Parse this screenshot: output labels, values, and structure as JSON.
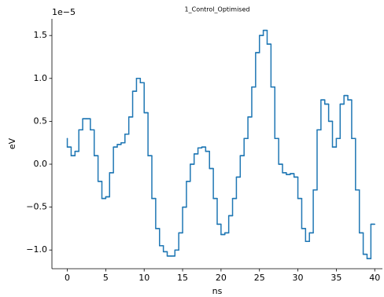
{
  "chart_data": {
    "type": "step",
    "title": "1_Control_Optimised",
    "xlabel": "ns",
    "ylabel": "eV",
    "y_offset_label": "1e−5",
    "color": "#1f77b4",
    "x": [
      0,
      0.5,
      1,
      1.5,
      2,
      2.5,
      3,
      3.5,
      4,
      4.5,
      5,
      5.5,
      6,
      6.5,
      7,
      7.5,
      8,
      8.5,
      9,
      9.5,
      10,
      10.5,
      11,
      11.5,
      12,
      12.5,
      13,
      13.5,
      14,
      14.5,
      15,
      15.5,
      16,
      16.5,
      17,
      17.5,
      18,
      18.5,
      19,
      19.5,
      20,
      20.5,
      21,
      21.5,
      22,
      22.5,
      23,
      23.5,
      24,
      24.5,
      25,
      25.5,
      26,
      26.5,
      27,
      27.5,
      28,
      28.5,
      29,
      29.5,
      30,
      30.5,
      31,
      31.5,
      32,
      32.5,
      33,
      33.5,
      34,
      34.5,
      35,
      35.5,
      36,
      36.5,
      37,
      37.5,
      38,
      38.5,
      39,
      39.5,
      40
    ],
    "values": [
      0.3,
      0.2,
      0.1,
      0.15,
      0.4,
      0.53,
      0.53,
      0.4,
      0.1,
      -0.2,
      -0.4,
      -0.38,
      -0.1,
      0.2,
      0.23,
      0.25,
      0.35,
      0.55,
      0.85,
      1.0,
      0.95,
      0.6,
      0.1,
      -0.4,
      -0.75,
      -0.95,
      -1.02,
      -1.07,
      -1.07,
      -1.0,
      -0.8,
      -0.5,
      -0.2,
      0.0,
      0.12,
      0.19,
      0.2,
      0.15,
      -0.05,
      -0.4,
      -0.7,
      -0.82,
      -0.8,
      -0.6,
      -0.4,
      -0.15,
      0.1,
      0.3,
      0.55,
      0.9,
      1.3,
      1.5,
      1.56,
      1.4,
      0.9,
      0.3,
      0.0,
      -0.1,
      -0.12,
      -0.11,
      -0.15,
      -0.4,
      -0.75,
      -0.9,
      -0.8,
      -0.3,
      0.4,
      0.75,
      0.7,
      0.5,
      0.2,
      0.3,
      0.7,
      0.8,
      0.75,
      0.3,
      -0.3,
      -0.8,
      -1.05,
      -1.1,
      -0.7
    ],
    "xlim": [
      -2,
      41
    ],
    "ylim": [
      -1.218,
      1.694
    ],
    "xticks": [
      0,
      5,
      10,
      15,
      20,
      25,
      30,
      35,
      40
    ],
    "yticks": [
      {
        "value": -1.0,
        "label": "−1.0"
      },
      {
        "value": -0.5,
        "label": "−0.5"
      },
      {
        "value": 0.0,
        "label": "0.0"
      },
      {
        "value": 0.5,
        "label": "0.5"
      },
      {
        "value": 1.0,
        "label": "1.0"
      },
      {
        "value": 1.5,
        "label": "1.5"
      }
    ]
  }
}
